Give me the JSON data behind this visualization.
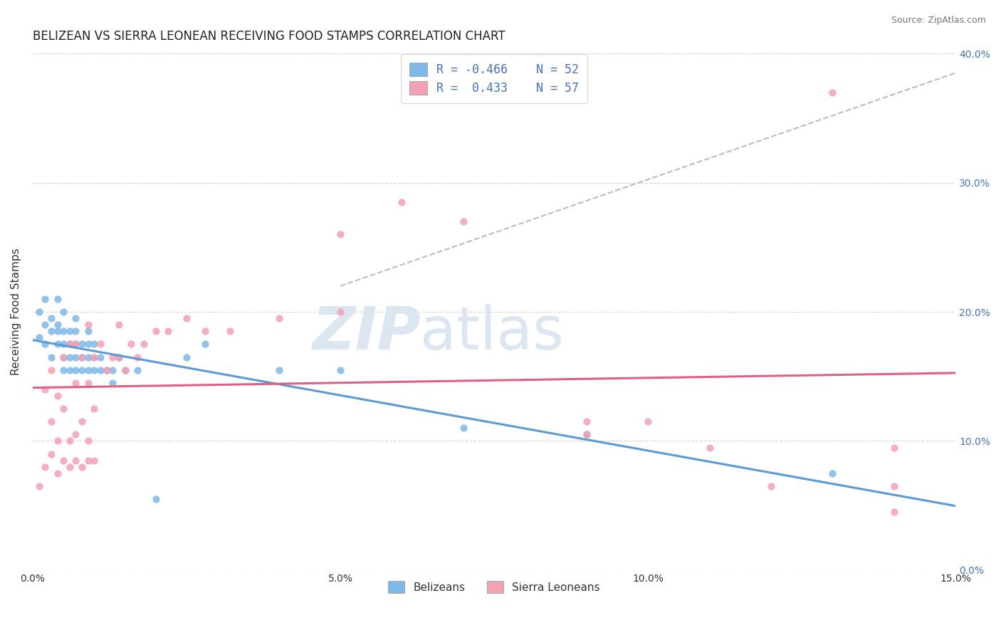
{
  "title": "BELIZEAN VS SIERRA LEONEAN RECEIVING FOOD STAMPS CORRELATION CHART",
  "source": "Source: ZipAtlas.com",
  "ylabel": "Receiving Food Stamps",
  "xlim": [
    0.0,
    0.15
  ],
  "ylim": [
    0.0,
    0.4
  ],
  "xticks": [
    0.0,
    0.05,
    0.1,
    0.15
  ],
  "yticks": [
    0.0,
    0.1,
    0.2,
    0.3,
    0.4
  ],
  "xticklabels": [
    "0.0%",
    "5.0%",
    "10.0%",
    "15.0%"
  ],
  "yticklabels_right": [
    "0.0%",
    "10.0%",
    "20.0%",
    "30.0%",
    "40.0%"
  ],
  "belizean_color": "#7db8e8",
  "sierraleone_color": "#f4a0b5",
  "trend_blue_color": "#5b9bd5",
  "trend_pink_color": "#e06080",
  "gray_dash_color": "#bbbbbb",
  "background_color": "#ffffff",
  "grid_color": "#cccccc",
  "watermark_color": "#dce6f0",
  "title_fontsize": 12,
  "axis_label_fontsize": 11,
  "tick_fontsize": 10,
  "watermark_fontsize": 60,
  "legend_text_color": "#4472c4",
  "right_tick_color": "#4472c4",
  "belizean_x": [
    0.001,
    0.001,
    0.002,
    0.002,
    0.002,
    0.003,
    0.003,
    0.003,
    0.004,
    0.004,
    0.004,
    0.004,
    0.005,
    0.005,
    0.005,
    0.005,
    0.005,
    0.006,
    0.006,
    0.006,
    0.006,
    0.007,
    0.007,
    0.007,
    0.007,
    0.007,
    0.008,
    0.008,
    0.008,
    0.009,
    0.009,
    0.009,
    0.009,
    0.01,
    0.01,
    0.01,
    0.011,
    0.011,
    0.012,
    0.013,
    0.013,
    0.014,
    0.015,
    0.017,
    0.02,
    0.025,
    0.028,
    0.04,
    0.05,
    0.07,
    0.09,
    0.13
  ],
  "belizean_y": [
    0.18,
    0.2,
    0.175,
    0.19,
    0.21,
    0.165,
    0.185,
    0.195,
    0.175,
    0.185,
    0.19,
    0.21,
    0.155,
    0.165,
    0.175,
    0.185,
    0.2,
    0.155,
    0.165,
    0.175,
    0.185,
    0.155,
    0.165,
    0.175,
    0.185,
    0.195,
    0.155,
    0.165,
    0.175,
    0.155,
    0.165,
    0.175,
    0.185,
    0.155,
    0.165,
    0.175,
    0.155,
    0.165,
    0.155,
    0.155,
    0.145,
    0.165,
    0.155,
    0.155,
    0.055,
    0.165,
    0.175,
    0.155,
    0.155,
    0.11,
    0.105,
    0.075
  ],
  "sierraleone_x": [
    0.001,
    0.002,
    0.002,
    0.003,
    0.003,
    0.003,
    0.004,
    0.004,
    0.004,
    0.005,
    0.005,
    0.005,
    0.006,
    0.006,
    0.006,
    0.007,
    0.007,
    0.007,
    0.007,
    0.008,
    0.008,
    0.008,
    0.009,
    0.009,
    0.009,
    0.009,
    0.01,
    0.01,
    0.01,
    0.011,
    0.012,
    0.013,
    0.014,
    0.014,
    0.015,
    0.016,
    0.017,
    0.018,
    0.02,
    0.022,
    0.025,
    0.028,
    0.032,
    0.04,
    0.05,
    0.06,
    0.05,
    0.07,
    0.09,
    0.09,
    0.1,
    0.11,
    0.12,
    0.13,
    0.14,
    0.14,
    0.14
  ],
  "sierraleone_y": [
    0.065,
    0.08,
    0.14,
    0.09,
    0.115,
    0.155,
    0.075,
    0.1,
    0.135,
    0.085,
    0.125,
    0.165,
    0.08,
    0.1,
    0.175,
    0.085,
    0.105,
    0.145,
    0.175,
    0.08,
    0.115,
    0.165,
    0.085,
    0.1,
    0.145,
    0.19,
    0.085,
    0.125,
    0.165,
    0.175,
    0.155,
    0.165,
    0.165,
    0.19,
    0.155,
    0.175,
    0.165,
    0.175,
    0.185,
    0.185,
    0.195,
    0.185,
    0.185,
    0.195,
    0.2,
    0.285,
    0.26,
    0.27,
    0.105,
    0.115,
    0.115,
    0.095,
    0.065,
    0.37,
    0.065,
    0.095,
    0.045
  ],
  "gray_line_x": [
    0.05,
    0.15
  ],
  "gray_line_y": [
    0.22,
    0.385
  ]
}
